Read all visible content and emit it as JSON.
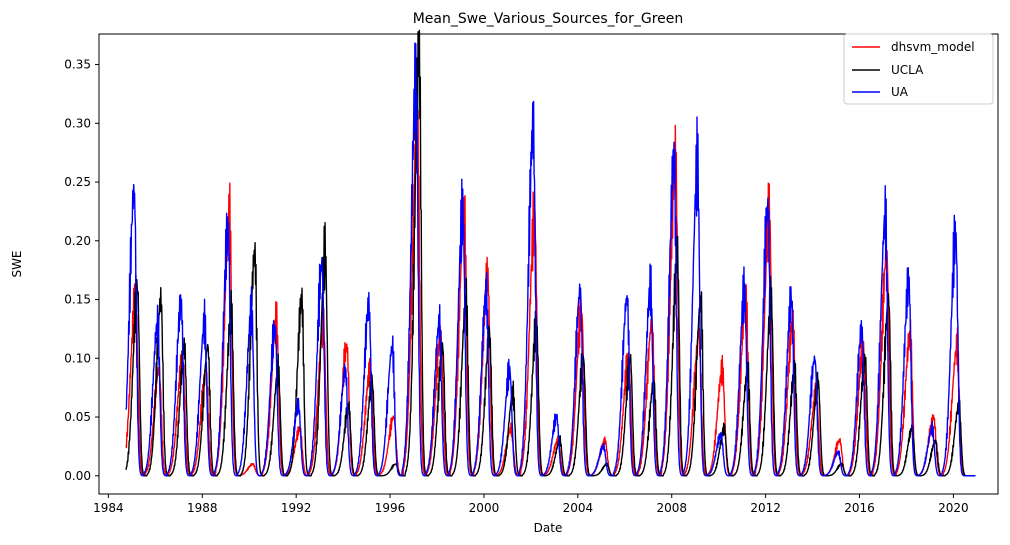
{
  "chart_data": {
    "type": "line",
    "title": "Mean_Swe_Various_Sources_for_Green",
    "xlabel": "Date",
    "ylabel": "SWE",
    "xlim": [
      1983.6,
      2021.9
    ],
    "ylim": [
      -0.0155,
      0.376
    ],
    "x_ticks": [
      1984,
      1988,
      1992,
      1996,
      2000,
      2004,
      2008,
      2012,
      2016,
      2020
    ],
    "x_tick_labels": [
      "1984",
      "1988",
      "1992",
      "1996",
      "2000",
      "2004",
      "2008",
      "2012",
      "2016",
      "2020"
    ],
    "y_ticks": [
      0.0,
      0.05,
      0.1,
      0.15,
      0.2,
      0.25,
      0.3,
      0.35
    ],
    "y_tick_labels": [
      "0.00",
      "0.05",
      "0.10",
      "0.15",
      "0.20",
      "0.25",
      "0.30",
      "0.35"
    ],
    "grid": false,
    "legend_position": "top-right",
    "x_start": 1984.75,
    "x_end": 2020.95,
    "peak_years": [
      1985,
      1986,
      1987,
      1988,
      1989,
      1990,
      1991,
      1992,
      1993,
      1994,
      1995,
      1996,
      1997,
      1998,
      1999,
      2000,
      2001,
      2002,
      2003,
      2004,
      2005,
      2006,
      2007,
      2008,
      2009,
      2010,
      2011,
      2012,
      2013,
      2014,
      2015,
      2016,
      2017,
      2018,
      2019,
      2020
    ],
    "series": [
      {
        "name": "dhsvm_model",
        "color": "#ff0000",
        "peaks": [
          0.15,
          0.09,
          0.1,
          0.09,
          0.22,
          0.01,
          0.13,
          0.04,
          0.13,
          0.11,
          0.09,
          0.05,
          0.3,
          0.12,
          0.22,
          0.17,
          0.04,
          0.22,
          0.03,
          0.14,
          0.03,
          0.1,
          0.13,
          0.27,
          0.12,
          0.09,
          0.15,
          0.22,
          0.13,
          0.07,
          0.03,
          0.11,
          0.19,
          0.12,
          0.05,
          0.11
        ]
      },
      {
        "name": "UCLA",
        "color": "#000000",
        "peaks": [
          0.16,
          0.15,
          0.11,
          0.11,
          0.14,
          0.19,
          0.09,
          0.15,
          0.19,
          0.06,
          0.08,
          0.01,
          0.36,
          0.11,
          0.15,
          0.12,
          0.07,
          0.13,
          0.03,
          0.1,
          0.01,
          0.1,
          0.08,
          0.19,
          0.15,
          0.04,
          0.09,
          0.15,
          0.09,
          0.08,
          0.01,
          0.1,
          0.15,
          0.04,
          0.03,
          0.06
        ]
      },
      {
        "name": "UA",
        "color": "#0000ff",
        "peaks": [
          0.243,
          0.13,
          0.147,
          0.13,
          0.21,
          0.14,
          0.126,
          0.06,
          0.18,
          0.09,
          0.145,
          0.11,
          0.335,
          0.13,
          0.225,
          0.155,
          0.09,
          0.297,
          0.05,
          0.158,
          0.025,
          0.152,
          0.16,
          0.272,
          0.265,
          0.035,
          0.157,
          0.23,
          0.15,
          0.1,
          0.02,
          0.125,
          0.22,
          0.165,
          0.04,
          0.205
        ]
      }
    ]
  }
}
